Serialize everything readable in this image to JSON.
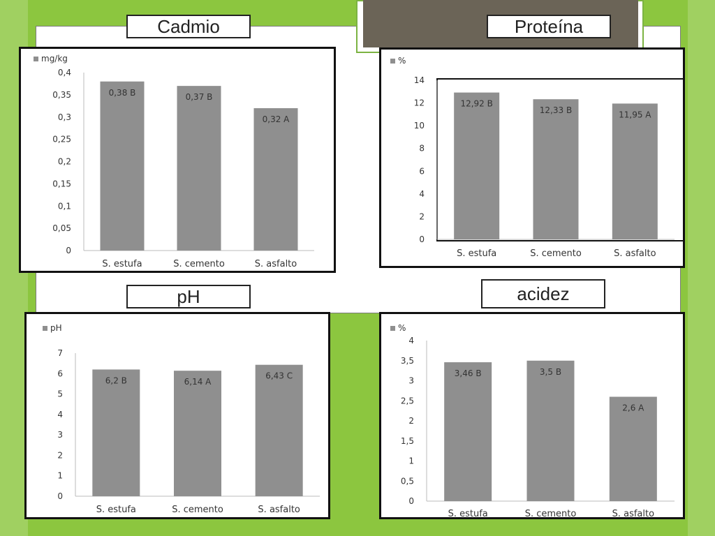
{
  "titles": {
    "cadmio": "Cadmio",
    "proteina": "Proteína",
    "ph": "pH",
    "acidez": "acidez"
  },
  "colors": {
    "bar": "#8f8f8f",
    "background": "#8cc63f"
  },
  "chart_data": [
    {
      "type": "bar",
      "title": "Cadmio",
      "legend": "mg/kg",
      "legend_position": "top-left",
      "categories": [
        "S. estufa",
        "S. cemento",
        "S. asfalto"
      ],
      "values": [
        0.38,
        0.37,
        0.32
      ],
      "data_labels": [
        "0,38 B",
        "0,37 B",
        "0,32 A"
      ],
      "ylim": [
        0,
        0.4
      ],
      "ticks": [
        "0",
        "0,05",
        "0,1",
        "0,15",
        "0,2",
        "0,25",
        "0,3",
        "0,35",
        "0,4"
      ],
      "grid": false
    },
    {
      "type": "bar",
      "title": "Proteína",
      "legend": "%",
      "legend_position": "top-left",
      "categories": [
        "S. estufa",
        "S. cemento",
        "S. asfalto"
      ],
      "values": [
        12.92,
        12.33,
        11.95
      ],
      "data_labels": [
        "12,92 B",
        "12,33 B",
        "11,95 A"
      ],
      "ylim": [
        0,
        14
      ],
      "ticks": [
        "0",
        "2",
        "4",
        "6",
        "8",
        "10",
        "12",
        "14"
      ],
      "grid": false
    },
    {
      "type": "bar",
      "title": "pH",
      "legend": "pH",
      "legend_position": "top-left",
      "categories": [
        "S. estufa",
        "S. cemento",
        "S. asfalto"
      ],
      "values": [
        6.2,
        6.14,
        6.43
      ],
      "data_labels": [
        "6,2 B",
        "6,14 A",
        "6,43 C"
      ],
      "ylim": [
        0,
        7
      ],
      "ticks": [
        "0",
        "1",
        "2",
        "3",
        "4",
        "5",
        "6",
        "7"
      ],
      "grid": false
    },
    {
      "type": "bar",
      "title": "acidez",
      "legend": "%",
      "legend_position": "top-left",
      "categories": [
        "S. estufa",
        "S. cemento",
        "S. asfalto"
      ],
      "values": [
        3.46,
        3.5,
        2.6
      ],
      "data_labels": [
        "3,46 B",
        "3,5 B",
        "2,6 A"
      ],
      "ylim": [
        0,
        4
      ],
      "ticks": [
        "0",
        "0,5",
        "1",
        "1,5",
        "2",
        "2,5",
        "3",
        "3,5",
        "4"
      ],
      "grid": false
    }
  ]
}
